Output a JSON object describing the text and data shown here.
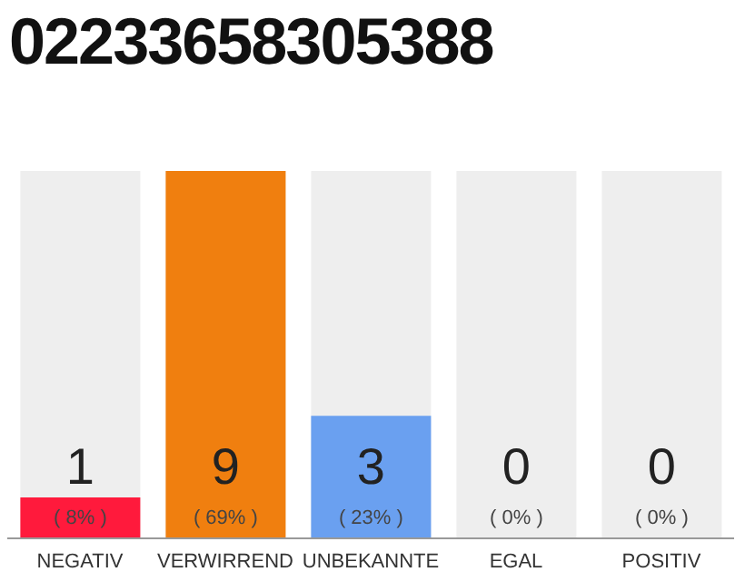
{
  "chart_data": {
    "type": "bar",
    "title": "02233658305388",
    "categories": [
      "NEGATIV",
      "VERWIRREND",
      "UNBEKANNTE",
      "EGAL",
      "POSITIV"
    ],
    "values": [
      1,
      9,
      3,
      0,
      0
    ],
    "colors": [
      "#ff1a3c",
      "#f07f0f",
      "#6aa0f0",
      "#cccccc",
      "#cccccc"
    ],
    "value_labels": [
      "1 ( 8% )",
      "9 ( 69% )",
      "3 ( 23% )",
      "0 ( 0% )",
      "0 ( 0% )"
    ]
  }
}
